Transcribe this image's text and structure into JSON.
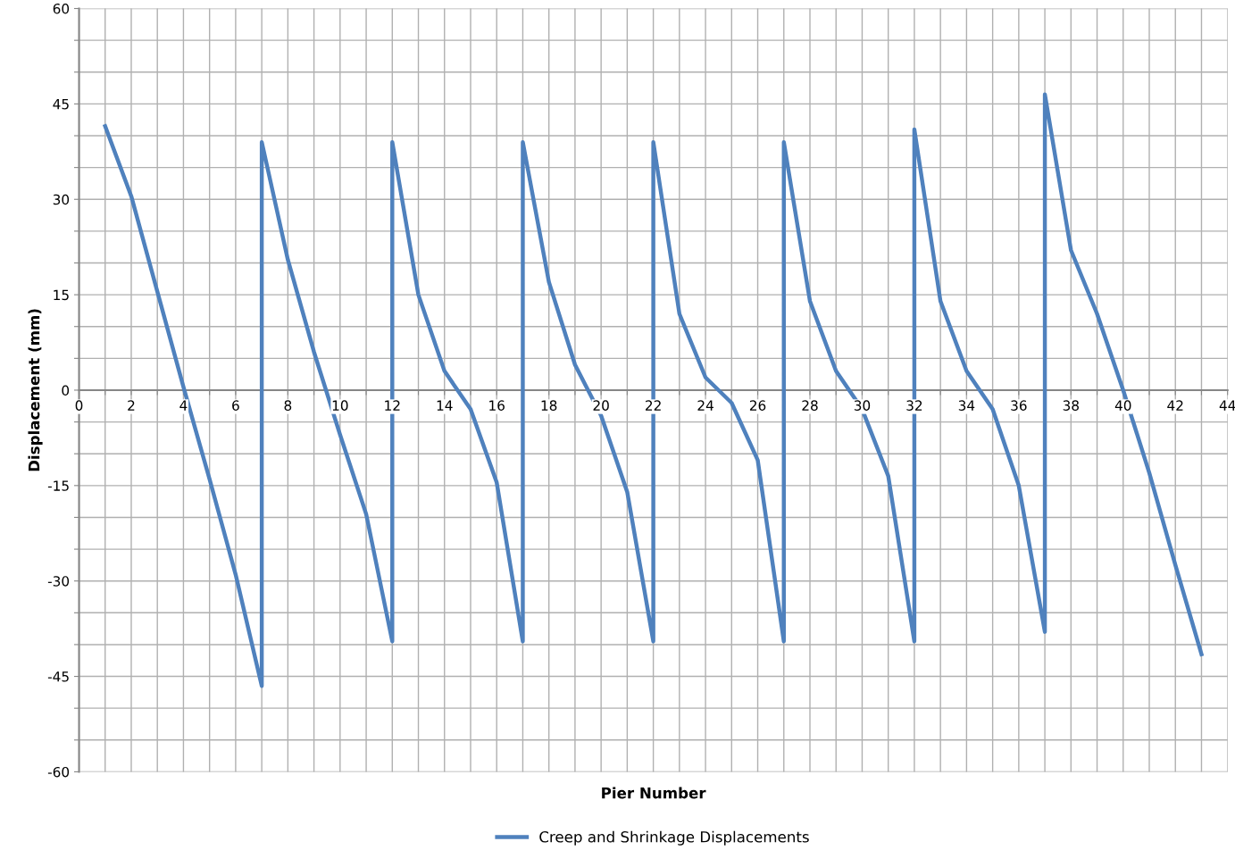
{
  "chart_data": {
    "type": "line",
    "xlabel": "Pier Number",
    "ylabel": "Displacement (mm)",
    "xlim": [
      0,
      44
    ],
    "ylim": [
      -60,
      60
    ],
    "xticks": [
      0,
      {
        "value": 1,
        "label": null
      },
      2,
      {
        "value": 3,
        "label": null
      },
      4,
      {
        "value": 5,
        "label": null
      },
      6,
      {
        "value": 7,
        "label": null
      },
      8,
      {
        "value": 9,
        "label": null
      },
      10,
      {
        "value": 11,
        "label": null
      },
      12,
      {
        "value": 13,
        "label": null
      },
      14,
      {
        "value": 15,
        "label": null
      },
      16,
      {
        "value": 17,
        "label": null
      },
      18,
      {
        "value": 19,
        "label": null
      },
      20,
      {
        "value": 21,
        "label": null
      },
      22,
      {
        "value": 23,
        "label": null
      },
      24,
      {
        "value": 25,
        "label": null
      },
      26,
      {
        "value": 27,
        "label": null
      },
      28,
      {
        "value": 29,
        "label": null
      },
      30,
      {
        "value": 31,
        "label": null
      },
      32,
      {
        "value": 33,
        "label": null
      },
      34,
      {
        "value": 35,
        "label": null
      },
      36,
      {
        "value": 37,
        "label": null
      },
      38,
      {
        "value": 39,
        "label": null
      },
      40,
      {
        "value": 41,
        "label": null
      },
      42,
      {
        "value": 43,
        "label": null
      },
      44
    ],
    "yticks": [
      -60,
      {
        "value": -55,
        "label": null
      },
      {
        "value": -50,
        "label": null
      },
      -45,
      {
        "value": -40,
        "label": null
      },
      {
        "value": -35,
        "label": null
      },
      -30,
      {
        "value": -25,
        "label": null
      },
      {
        "value": -20,
        "label": null
      },
      -15,
      {
        "value": -10,
        "label": null
      },
      {
        "value": -5,
        "label": null
      },
      0,
      {
        "value": 5,
        "label": null
      },
      {
        "value": 10,
        "label": null
      },
      15,
      {
        "value": 20,
        "label": null
      },
      {
        "value": 25,
        "label": null
      },
      30,
      {
        "value": 35,
        "label": null
      },
      {
        "value": 40,
        "label": null
      },
      45,
      {
        "value": 50,
        "label": null
      },
      {
        "value": 55,
        "label": null
      },
      60
    ],
    "grid": true,
    "legend": "bottom",
    "marker": "none",
    "line_style": "solid",
    "series": [
      {
        "name": "Creep and Shrinkage Displacements",
        "color": "#4f81bd",
        "x": [
          1,
          2,
          3,
          4,
          5,
          6,
          7,
          7,
          8,
          9,
          10,
          11,
          12,
          12,
          13,
          14,
          15,
          16,
          17,
          17,
          18,
          19,
          20,
          21,
          22,
          22,
          23,
          24,
          25,
          26,
          27,
          27,
          28,
          29,
          30,
          31,
          32,
          32,
          33,
          34,
          35,
          36,
          37,
          37,
          38,
          39,
          40,
          41,
          42,
          43
        ],
        "values": [
          41.5,
          30.5,
          15.5,
          0.5,
          -14,
          -29,
          -46.5,
          39,
          20.5,
          6,
          -7,
          -19.5,
          -39.5,
          39,
          15,
          3,
          -3,
          -14.5,
          -39.5,
          39,
          17,
          4,
          -4,
          -16,
          -39.5,
          39,
          12,
          2,
          -2,
          -11,
          -39.5,
          39,
          14,
          3,
          -3,
          -13.5,
          -39.5,
          41,
          14,
          3,
          -3,
          -15,
          -38,
          46.5,
          22,
          12,
          0,
          -13,
          -27.5,
          -41.5
        ]
      }
    ]
  }
}
